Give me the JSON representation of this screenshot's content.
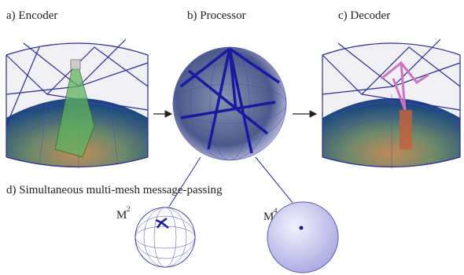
{
  "panels": [
    {
      "label": "a) Encoder"
    },
    {
      "label": "b) Processor"
    },
    {
      "label": "c) Decoder"
    }
  ],
  "section_d": {
    "title": "d) Simultaneous multi-mesh message-passing"
  },
  "meshes": [
    {
      "base": "M",
      "sup": "2"
    },
    {
      "base": "M",
      "sup": "4"
    }
  ]
}
